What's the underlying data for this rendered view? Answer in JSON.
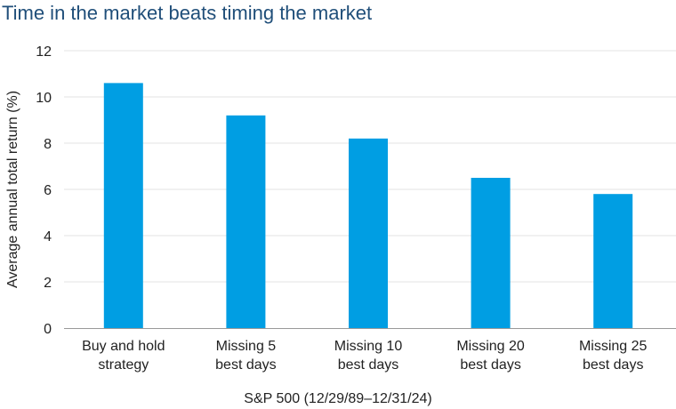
{
  "chart_data": {
    "type": "bar",
    "title": "Time in the market beats timing the market",
    "xlabel": "S&P 500 (12/29/89–12/31/24)",
    "ylabel": "Average annual total return (%)",
    "ylim": [
      0,
      12
    ],
    "yticks": [
      "0",
      "2",
      "4",
      "6",
      "8",
      "10",
      "12"
    ],
    "grid": true,
    "categories": [
      [
        "Buy and hold",
        "strategy"
      ],
      [
        "Missing 5",
        "best days"
      ],
      [
        "Missing 10",
        "best days"
      ],
      [
        "Missing 20",
        "best days"
      ],
      [
        "Missing 25",
        "best days"
      ]
    ],
    "values": [
      10.6,
      9.2,
      8.2,
      6.5,
      5.8
    ],
    "colors": {
      "bar": "#009ee3",
      "grid": "#e3e3e3",
      "axis": "#999999",
      "title": "#1f4e79"
    }
  }
}
